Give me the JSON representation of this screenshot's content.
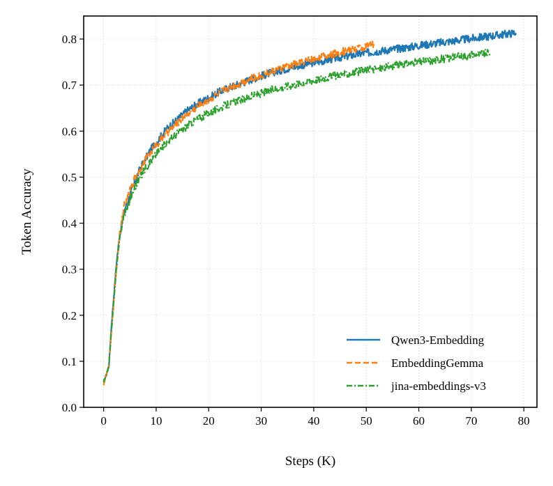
{
  "chart_data": {
    "type": "line",
    "title": "",
    "xlabel": "Steps (K)",
    "ylabel": "Token Accuracy",
    "xlim": [
      -3.8,
      82.5
    ],
    "ylim": [
      0.0,
      0.85
    ],
    "xticks": [
      0,
      10,
      20,
      30,
      40,
      50,
      60,
      70,
      80
    ],
    "yticks": [
      0.0,
      0.1,
      0.2,
      0.3,
      0.4,
      0.5,
      0.6,
      0.7,
      0.8
    ],
    "xtick_labels": [
      "0",
      "10",
      "20",
      "30",
      "40",
      "50",
      "60",
      "70",
      "80"
    ],
    "ytick_labels": [
      "0.0",
      "0.1",
      "0.2",
      "0.3",
      "0.4",
      "0.5",
      "0.6",
      "0.7",
      "0.8"
    ],
    "grid": true,
    "legend_position": "lower-right",
    "series": [
      {
        "name": "Qwen3-Embedding",
        "color": "#1f77b4",
        "style": "solid",
        "x": [
          0,
          0.5,
          1,
          1.5,
          2,
          2.5,
          3,
          3.5,
          4,
          5,
          6,
          7,
          8,
          9,
          10,
          12,
          14,
          16,
          18,
          20,
          22,
          24,
          26,
          28,
          30,
          32,
          34,
          36,
          38,
          40,
          42,
          44,
          46,
          48,
          50,
          52,
          54,
          56,
          58,
          60,
          62,
          64,
          66,
          68,
          70,
          72,
          74,
          76,
          78,
          78.5
        ],
        "y": [
          0.055,
          0.07,
          0.09,
          0.18,
          0.25,
          0.32,
          0.37,
          0.4,
          0.43,
          0.46,
          0.49,
          0.52,
          0.54,
          0.56,
          0.575,
          0.605,
          0.625,
          0.645,
          0.66,
          0.672,
          0.685,
          0.695,
          0.703,
          0.712,
          0.72,
          0.727,
          0.733,
          0.739,
          0.744,
          0.749,
          0.753,
          0.758,
          0.762,
          0.766,
          0.77,
          0.773,
          0.776,
          0.779,
          0.782,
          0.786,
          0.789,
          0.792,
          0.795,
          0.798,
          0.801,
          0.804,
          0.807,
          0.81,
          0.813,
          0.815
        ]
      },
      {
        "name": "EmbeddingGemma",
        "color": "#ff7f0e",
        "style": "dashed",
        "x": [
          0,
          0.5,
          1,
          1.5,
          2,
          2.5,
          3,
          3.5,
          4,
          5,
          6,
          7,
          8,
          9,
          10,
          12,
          14,
          16,
          18,
          20,
          22,
          24,
          26,
          28,
          30,
          32,
          34,
          36,
          38,
          40,
          42,
          44,
          46,
          48,
          50,
          51.5
        ],
        "y": [
          0.05,
          0.07,
          0.09,
          0.17,
          0.24,
          0.31,
          0.37,
          0.41,
          0.44,
          0.47,
          0.5,
          0.52,
          0.54,
          0.555,
          0.57,
          0.595,
          0.618,
          0.638,
          0.655,
          0.668,
          0.683,
          0.695,
          0.704,
          0.713,
          0.721,
          0.729,
          0.737,
          0.744,
          0.751,
          0.757,
          0.763,
          0.768,
          0.774,
          0.779,
          0.784,
          0.787
        ]
      },
      {
        "name": "jina-embeddings-v3",
        "color": "#2ca02c",
        "style": "dashdot",
        "x": [
          0,
          0.5,
          1,
          1.5,
          2,
          2.5,
          3,
          3.5,
          4,
          5,
          6,
          7,
          8,
          9,
          10,
          12,
          14,
          16,
          18,
          20,
          22,
          24,
          26,
          28,
          30,
          32,
          34,
          36,
          38,
          40,
          42,
          44,
          46,
          48,
          50,
          52,
          54,
          56,
          58,
          60,
          62,
          64,
          66,
          68,
          70,
          72,
          73.5
        ],
        "y": [
          0.055,
          0.07,
          0.09,
          0.17,
          0.24,
          0.31,
          0.36,
          0.4,
          0.42,
          0.45,
          0.48,
          0.5,
          0.52,
          0.535,
          0.55,
          0.575,
          0.595,
          0.612,
          0.627,
          0.639,
          0.65,
          0.659,
          0.667,
          0.675,
          0.682,
          0.689,
          0.695,
          0.701,
          0.706,
          0.711,
          0.716,
          0.72,
          0.724,
          0.728,
          0.732,
          0.736,
          0.74,
          0.743,
          0.746,
          0.75,
          0.753,
          0.756,
          0.759,
          0.762,
          0.765,
          0.768,
          0.77
        ]
      }
    ]
  }
}
